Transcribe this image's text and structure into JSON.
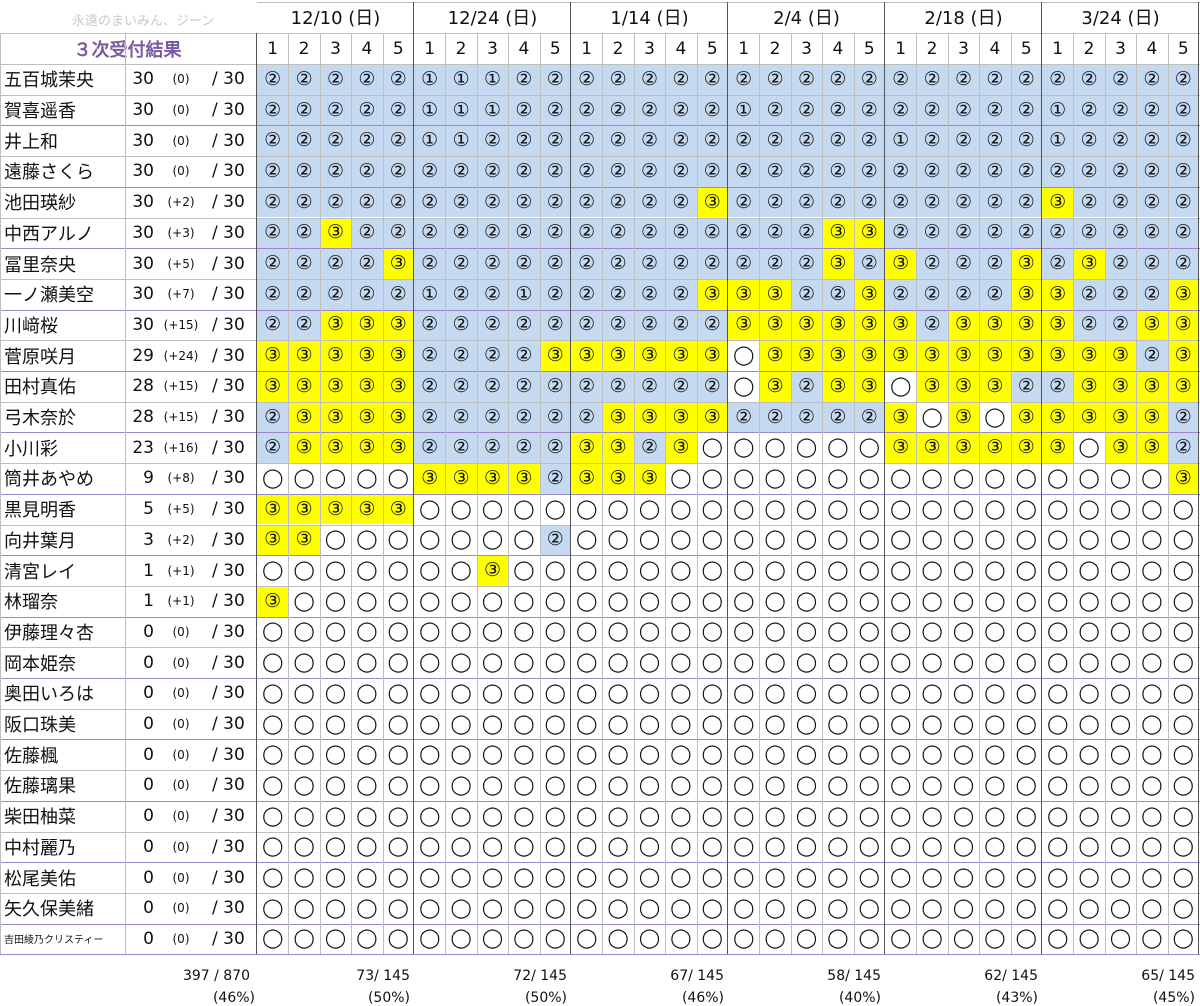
{
  "watermark": "永遠のまいみん、ジーン",
  "header": {
    "result_label": "３次受付結果"
  },
  "dates": [
    "12/10 (日)",
    "12/24 (日)",
    "1/14 (日)",
    "2/4 (日)",
    "2/18 (日)",
    "3/24 (日)"
  ],
  "slot_numbers": [
    "1",
    "2",
    "3",
    "4",
    "5"
  ],
  "denominator": "/ 30",
  "symbols": {
    "1": "①",
    "2": "②",
    "3": "③",
    "0": "◯"
  },
  "colors": {
    "blue": "#c5d9f1",
    "yellow": "#ffff00",
    "white": "#ffffff",
    "title_purple": "#7a5aa0",
    "group_line": "#9a86c8"
  },
  "rows": [
    {
      "name": "五百城茉央",
      "count": "30",
      "delta": "(0)",
      "marks": "222221112222222222222222222222"
    },
    {
      "name": "賀喜遥香",
      "count": "30",
      "delta": "(0)",
      "marks": "222221112222222122222222212222"
    },
    {
      "name": "井上和",
      "count": "30",
      "delta": "(0)",
      "marks": "222221122222222222221222212222"
    },
    {
      "name": "遠藤さくら",
      "count": "30",
      "delta": "(0)",
      "marks": "222222222222222222222222222222"
    },
    {
      "name": "池田瑛紗",
      "count": "30",
      "delta": "(+2)",
      "marks": "222222222222223222222222232222"
    },
    {
      "name": "中西アルノ",
      "count": "30",
      "delta": "(+3)",
      "marks": "223222222222222222332222222222"
    },
    {
      "name": "冨里奈央",
      "count": "30",
      "delta": "(+5)",
      "marks": "222232222222222222323222323222"
    },
    {
      "name": "一ノ瀬美空",
      "count": "30",
      "delta": "(+7)",
      "marks": "222221221222223332232222332223"
    },
    {
      "name": "川﨑桜",
      "count": "30",
      "delta": "(+15)",
      "marks": "223332222222222333333233332233"
    },
    {
      "name": "菅原咲月",
      "count": "29",
      "delta": "(+24)",
      "marks": "333332222333333033333333333323"
    },
    {
      "name": "田村真佑",
      "count": "28",
      "delta": "(+15)",
      "marks": "333332222222222032330333223333"
    },
    {
      "name": "弓木奈於",
      "count": "28",
      "delta": "(+15)",
      "marks": "233332222223333222223030333332"
    },
    {
      "name": "小川彩",
      "count": "23",
      "delta": "(+16)",
      "marks": "233332222233230000003333330332"
    },
    {
      "name": "筒井あやめ",
      "count": "9",
      "delta": "(+8)",
      "marks": "000003333233300000000000000003"
    },
    {
      "name": "黒見明香",
      "count": "5",
      "delta": "(+5)",
      "marks": "333330000000000000000000000000"
    },
    {
      "name": "向井葉月",
      "count": "3",
      "delta": "(+2)",
      "marks": "330000000200000000000000000000"
    },
    {
      "name": "清宮レイ",
      "count": "1",
      "delta": "(+1)",
      "marks": "000000030000000000000000000000"
    },
    {
      "name": "林瑠奈",
      "count": "1",
      "delta": "(+1)",
      "marks": "300000000000000000000000000000"
    },
    {
      "name": "伊藤理々杏",
      "count": "0",
      "delta": "(0)",
      "marks": "000000000000000000000000000000"
    },
    {
      "name": "岡本姫奈",
      "count": "0",
      "delta": "(0)",
      "marks": "000000000000000000000000000000"
    },
    {
      "name": "奥田いろは",
      "count": "0",
      "delta": "(0)",
      "marks": "000000000000000000000000000000"
    },
    {
      "name": "阪口珠美",
      "count": "0",
      "delta": "(0)",
      "marks": "000000000000000000000000000000"
    },
    {
      "name": "佐藤楓",
      "count": "0",
      "delta": "(0)",
      "marks": "000000000000000000000000000000"
    },
    {
      "name": "佐藤璃果",
      "count": "0",
      "delta": "(0)",
      "marks": "000000000000000000000000000000"
    },
    {
      "name": "柴田柚菜",
      "count": "0",
      "delta": "(0)",
      "marks": "000000000000000000000000000000"
    },
    {
      "name": "中村麗乃",
      "count": "0",
      "delta": "(0)",
      "marks": "000000000000000000000000000000"
    },
    {
      "name": "松尾美佑",
      "count": "0",
      "delta": "(0)",
      "marks": "000000000000000000000000000000"
    },
    {
      "name": "矢久保美緒",
      "count": "0",
      "delta": "(0)",
      "marks": "000000000000000000000000000000"
    },
    {
      "name": "吉田綾乃クリスティー",
      "count": "0",
      "delta": "(0)",
      "marks": "000000000000000000000000000000"
    }
  ],
  "totals": {
    "overall": {
      "count": "397 / 870",
      "pct": "(46%)"
    },
    "per_date": [
      {
        "count": "73/ 145",
        "pct": "(50%)"
      },
      {
        "count": "72/ 145",
        "pct": "(50%)"
      },
      {
        "count": "67/ 145",
        "pct": "(46%)"
      },
      {
        "count": "58/ 145",
        "pct": "(40%)"
      },
      {
        "count": "62/ 145",
        "pct": "(43%)"
      },
      {
        "count": "65/ 145",
        "pct": "(45%)"
      }
    ]
  }
}
